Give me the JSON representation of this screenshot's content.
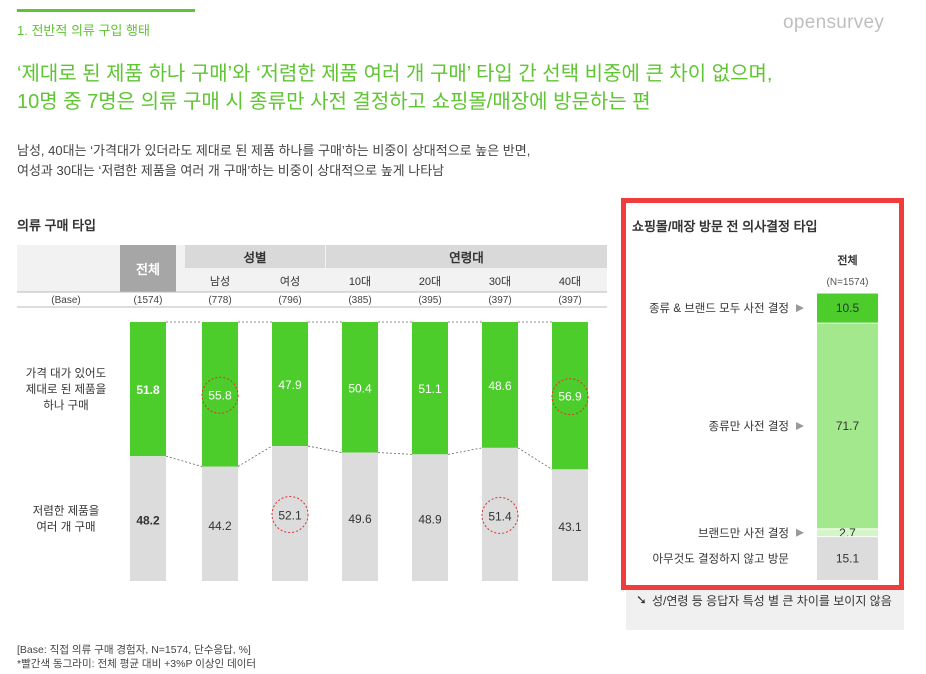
{
  "header": {
    "section_label": "1. 전반적 의류 구입 행태",
    "logo_text": "opensurvey"
  },
  "headline": {
    "line1": "‘제대로 된 제품 하나 구매’와 ‘저렴한 제품 여러 개 구매’ 타입 간 선택 비중에 큰 차이 없으며,",
    "line2": "10명 중 7명은 의류 구매 시 종류만 사전 결정하고 쇼핑몰/매장에 방문하는 편"
  },
  "summary": {
    "line1": "남성, 40대는 ‘가격대가 있더라도 제대로 된 제품 하나를 구매’하는 비중이 상대적으로 높은 반면,",
    "line2": "여성과 30대는 ‘저렴한 제품을 여러 개 구매’하는 비중이 상대적으로 높게 나타남"
  },
  "footnote": {
    "line1": "[Base: 직접 의류 구매 경험자, N=1574, 단수응답, %]",
    "line2": "*빨간색 동그라미: 전체 평균 대비 +3%P 이상인 데이터"
  },
  "colors": {
    "accent_green": "#5fc532",
    "bar_green": "#4ccd2c",
    "light_green": "#a3e88c",
    "pale_green": "#d4f5c7",
    "gray": "#dcdcdc",
    "header_dark": "#a6a6a6",
    "header_light": "#d9d9d9",
    "highlight_red": "#e03030"
  },
  "chart_data": [
    {
      "type": "bar",
      "stacked": true,
      "title": "의류 구매 타입",
      "groups": [
        {
          "label": "",
          "columns": [
            "전체"
          ]
        },
        {
          "label": "성별",
          "columns": [
            "남성",
            "여성"
          ]
        },
        {
          "label": "연령대",
          "columns": [
            "10대",
            "20대",
            "30대",
            "40대"
          ]
        }
      ],
      "categories": [
        "전체",
        "남성",
        "여성",
        "10대",
        "20대",
        "30대",
        "40대"
      ],
      "base_label": "(Base)",
      "bases": [
        "(1574)",
        "(778)",
        "(796)",
        "(385)",
        "(395)",
        "(397)",
        "(397)"
      ],
      "series": [
        {
          "name": "가격 대가 있어도 제대로 된 제품을 하나 구매",
          "label_lines": [
            "가격 대가 있어도",
            "제대로 된 제품을",
            "하나 구매"
          ],
          "values": [
            51.8,
            55.8,
            47.9,
            50.4,
            51.1,
            48.6,
            56.9
          ],
          "color": "#4ccd2c"
        },
        {
          "name": "저렴한 제품을 여러 개 구매",
          "label_lines": [
            "저렴한 제품을",
            "여러 개 구매"
          ],
          "values": [
            48.2,
            44.2,
            52.1,
            49.6,
            48.9,
            51.4,
            43.1
          ],
          "color": "#dcdcdc"
        }
      ],
      "highlights": [
        {
          "series": 0,
          "category": "남성"
        },
        {
          "series": 0,
          "category": "40대"
        },
        {
          "series": 1,
          "category": "여성"
        },
        {
          "series": 1,
          "category": "30대"
        }
      ],
      "ylim": [
        0,
        100
      ]
    },
    {
      "type": "bar",
      "stacked": true,
      "title": "쇼핑몰/매장 방문 전 의사결정 타입",
      "column_label": "전체",
      "base": "(N=1574)",
      "segments": [
        {
          "label": "종류 & 브랜드 모두 사전 결정",
          "value": 10.5,
          "color": "#4ccd2c"
        },
        {
          "label": "종류만 사전 결정",
          "value": 71.7,
          "color": "#a3e88c"
        },
        {
          "label": "브랜드만 사전 결정",
          "value": 2.7,
          "color": "#d4f5c7"
        },
        {
          "label": "아무것도 결정하지 않고 방문",
          "value": 15.1,
          "color": "#dcdcdc"
        }
      ],
      "ylim": [
        0,
        100
      ]
    }
  ],
  "note": {
    "arrow": "➘",
    "text": "성/연령 등 응답자 특성 별 큰 차이를 보이지 않음"
  }
}
